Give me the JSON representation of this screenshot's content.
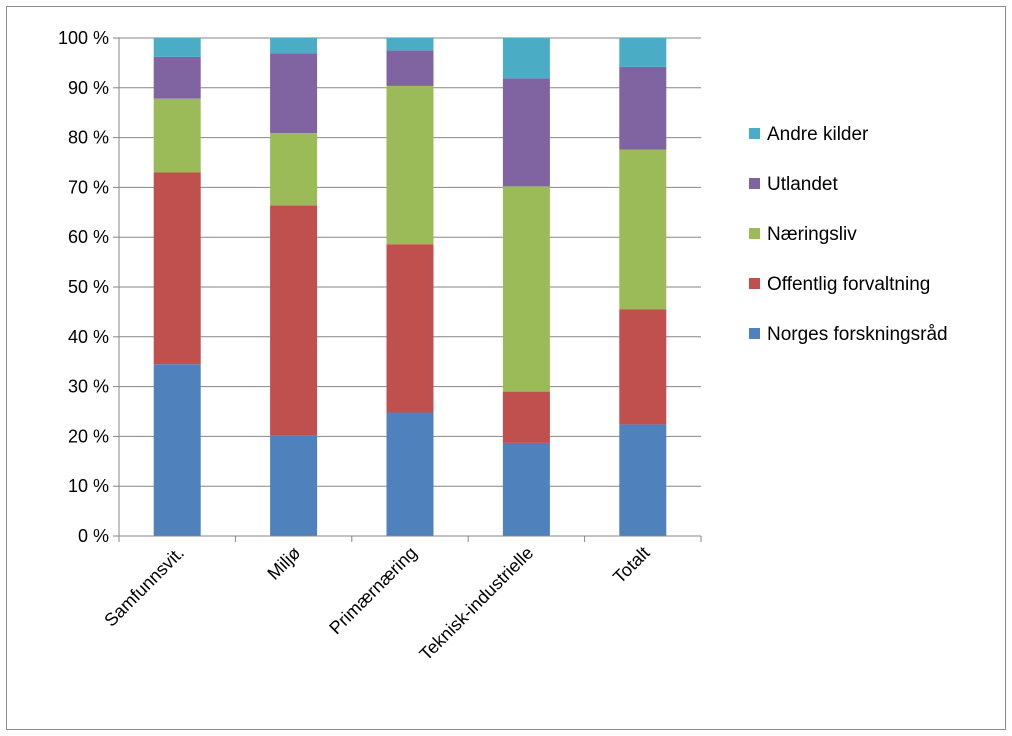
{
  "chart_data": {
    "type": "bar",
    "stacked": true,
    "normalized_percent": true,
    "categories": [
      "Samfunnsvit.",
      "Miljø",
      "Primærnæring",
      "Teknisk-industrielle",
      "Totalt"
    ],
    "series": [
      {
        "name": "Norges forskningsråd",
        "color": "#4f81bd",
        "values": [
          34.5,
          20.2,
          24.8,
          18.7,
          22.4
        ]
      },
      {
        "name": "Offentlig forvaltning",
        "color": "#c0504d",
        "values": [
          38.5,
          46.2,
          33.8,
          10.3,
          23.1
        ]
      },
      {
        "name": "Næringsliv",
        "color": "#9bbb59",
        "values": [
          14.8,
          14.5,
          31.8,
          41.2,
          32.1
        ]
      },
      {
        "name": "Utlandet",
        "color": "#8064a2",
        "values": [
          8.4,
          16.0,
          7.1,
          21.7,
          16.6
        ]
      },
      {
        "name": "Andre kilder",
        "color": "#4bacc6",
        "values": [
          3.8,
          3.1,
          2.5,
          8.1,
          5.8
        ]
      }
    ],
    "y_ticks": [
      "0 %",
      "10 %",
      "20 %",
      "30 %",
      "40 %",
      "50 %",
      "60 %",
      "70 %",
      "80 %",
      "90 %",
      "100 %"
    ],
    "ylim": [
      0,
      100
    ],
    "grid": true,
    "legend_position": "right",
    "legend_order": [
      "Andre kilder",
      "Utlandet",
      "Næringsliv",
      "Offentlig forvaltning",
      "Norges forskningsråd"
    ],
    "title": "",
    "xlabel": "",
    "ylabel": ""
  }
}
